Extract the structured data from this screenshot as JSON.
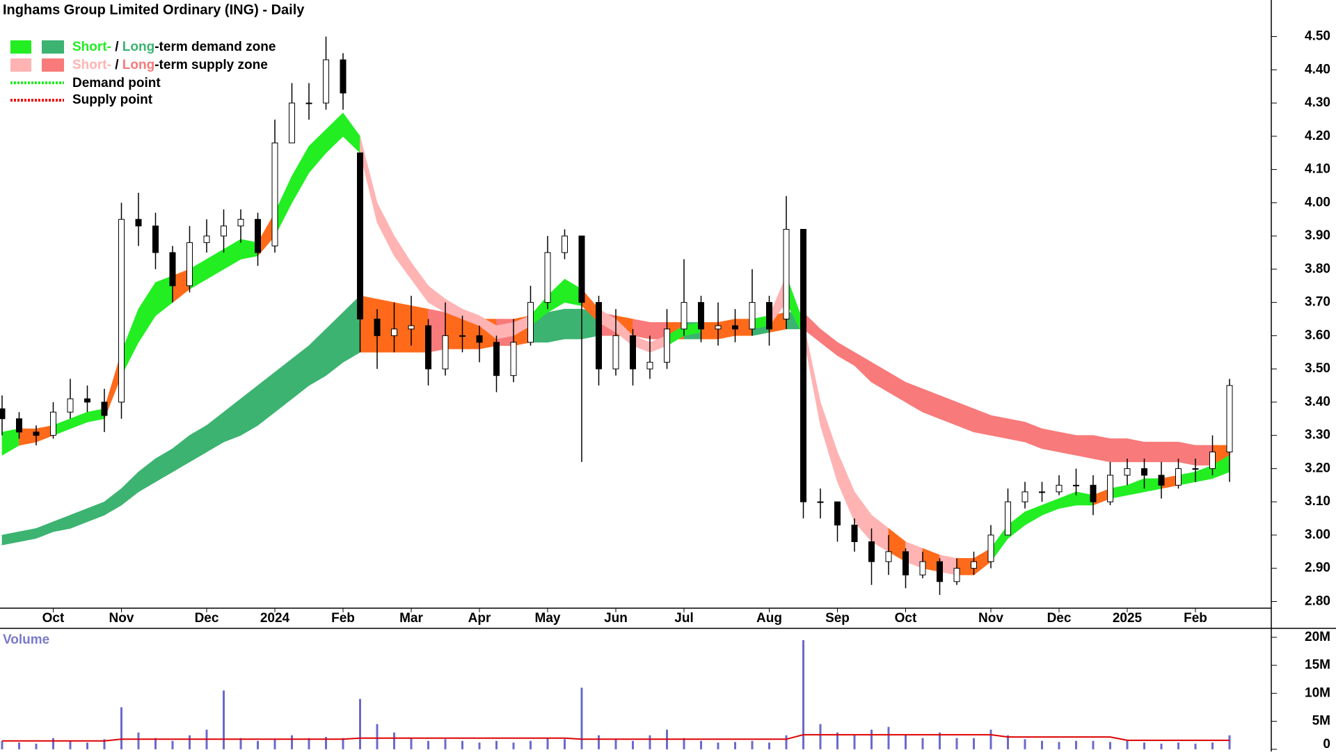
{
  "chart_data": {
    "type": "candlestick",
    "title": "Inghams Group Limited Ordinary (ING) - Daily",
    "categories": [
      null,
      null,
      null,
      "Oct",
      null,
      null,
      null,
      "Nov",
      null,
      null,
      null,
      null,
      "Dec",
      null,
      null,
      null,
      "2024",
      null,
      null,
      null,
      "Feb",
      null,
      null,
      null,
      "Mar",
      null,
      null,
      null,
      "Apr",
      null,
      null,
      null,
      "May",
      null,
      null,
      null,
      "Jun",
      null,
      null,
      null,
      "Jul",
      null,
      null,
      null,
      null,
      "Aug",
      null,
      null,
      null,
      "Sep",
      null,
      null,
      null,
      "Oct",
      null,
      null,
      null,
      null,
      "Nov",
      null,
      null,
      null,
      "Dec",
      null,
      null,
      null,
      "2025",
      null,
      null,
      null,
      "Feb",
      null,
      null
    ],
    "open": [
      3.38,
      3.35,
      3.31,
      3.3,
      3.37,
      3.41,
      3.4,
      3.4,
      3.95,
      3.93,
      3.85,
      3.75,
      3.88,
      3.9,
      3.93,
      3.95,
      3.87,
      4.18,
      4.3,
      4.3,
      4.43,
      4.15,
      3.65,
      3.6,
      3.62,
      3.63,
      3.5,
      3.6,
      3.6,
      3.58,
      3.48,
      3.58,
      3.7,
      3.85,
      3.9,
      3.7,
      3.5,
      3.6,
      3.5,
      3.52,
      3.62,
      3.7,
      3.62,
      3.63,
      3.62,
      3.7,
      3.65,
      3.92,
      3.1,
      3.1,
      3.03,
      2.98,
      2.92,
      2.95,
      2.88,
      2.92,
      2.86,
      2.9,
      2.92,
      3.0,
      3.1,
      3.13,
      3.13,
      3.15,
      3.15,
      3.1,
      3.18,
      3.2,
      3.18,
      3.15,
      3.2,
      3.2,
      3.25
    ],
    "high": [
      3.42,
      3.37,
      3.33,
      3.4,
      3.47,
      3.45,
      3.44,
      4.0,
      4.03,
      3.97,
      3.87,
      3.93,
      3.95,
      3.98,
      3.98,
      3.97,
      4.25,
      4.36,
      4.36,
      4.5,
      4.45,
      4.15,
      3.68,
      3.7,
      3.72,
      3.65,
      3.7,
      3.66,
      3.63,
      3.6,
      3.65,
      3.75,
      3.9,
      3.92,
      3.9,
      3.72,
      3.68,
      3.62,
      3.6,
      3.68,
      3.83,
      3.72,
      3.7,
      3.68,
      3.8,
      3.72,
      4.02,
      3.92,
      3.14,
      3.1,
      3.05,
      3.02,
      3.0,
      2.96,
      2.95,
      2.93,
      2.93,
      2.95,
      3.03,
      3.14,
      3.16,
      3.16,
      3.18,
      3.2,
      3.18,
      3.22,
      3.23,
      3.23,
      3.22,
      3.23,
      3.23,
      3.3,
      3.47
    ],
    "low": [
      3.3,
      3.29,
      3.27,
      3.29,
      3.35,
      3.37,
      3.31,
      3.35,
      3.87,
      3.8,
      3.7,
      3.73,
      3.85,
      3.85,
      3.88,
      3.81,
      3.85,
      4.18,
      4.25,
      4.28,
      4.28,
      3.55,
      3.5,
      3.55,
      3.57,
      3.45,
      3.48,
      3.55,
      3.52,
      3.43,
      3.46,
      3.57,
      3.68,
      3.83,
      3.22,
      3.45,
      3.48,
      3.45,
      3.47,
      3.5,
      3.6,
      3.58,
      3.57,
      3.58,
      3.6,
      3.57,
      3.62,
      3.05,
      3.05,
      2.98,
      2.95,
      2.85,
      2.88,
      2.84,
      2.87,
      2.82,
      2.85,
      2.88,
      2.9,
      3.0,
      3.08,
      3.1,
      3.12,
      3.12,
      3.06,
      3.09,
      3.15,
      3.14,
      3.11,
      3.14,
      3.16,
      3.18,
      3.16
    ],
    "close": [
      3.35,
      3.31,
      3.3,
      3.37,
      3.41,
      3.4,
      3.36,
      3.95,
      3.93,
      3.85,
      3.75,
      3.88,
      3.9,
      3.93,
      3.95,
      3.85,
      4.18,
      4.3,
      4.3,
      4.43,
      4.33,
      3.65,
      3.6,
      3.62,
      3.63,
      3.5,
      3.6,
      3.6,
      3.58,
      3.48,
      3.58,
      3.7,
      3.85,
      3.9,
      3.7,
      3.5,
      3.6,
      3.5,
      3.52,
      3.62,
      3.7,
      3.62,
      3.63,
      3.62,
      3.7,
      3.62,
      3.92,
      3.1,
      3.1,
      3.03,
      2.98,
      2.92,
      2.95,
      2.88,
      2.92,
      2.86,
      2.9,
      2.92,
      3.0,
      3.1,
      3.13,
      3.13,
      3.15,
      3.15,
      3.1,
      3.18,
      3.2,
      3.18,
      3.15,
      3.2,
      3.2,
      3.25,
      3.45
    ],
    "long_zone": {
      "upper": [
        3.0,
        3.01,
        3.02,
        3.04,
        3.06,
        3.08,
        3.1,
        3.14,
        3.19,
        3.23,
        3.26,
        3.3,
        3.33,
        3.37,
        3.41,
        3.45,
        3.49,
        3.53,
        3.57,
        3.62,
        3.67,
        3.72,
        3.71,
        3.7,
        3.69,
        3.68,
        3.67,
        3.66,
        3.65,
        3.65,
        3.65,
        3.66,
        3.67,
        3.68,
        3.68,
        3.67,
        3.66,
        3.65,
        3.64,
        3.64,
        3.64,
        3.64,
        3.64,
        3.65,
        3.65,
        3.66,
        3.67,
        3.67,
        3.62,
        3.58,
        3.55,
        3.52,
        3.49,
        3.46,
        3.44,
        3.42,
        3.4,
        3.38,
        3.36,
        3.35,
        3.34,
        3.32,
        3.31,
        3.3,
        3.3,
        3.29,
        3.29,
        3.28,
        3.28,
        3.28,
        3.27,
        3.27,
        3.27
      ],
      "lower": [
        2.97,
        2.98,
        2.99,
        3.01,
        3.02,
        3.04,
        3.06,
        3.09,
        3.13,
        3.16,
        3.19,
        3.22,
        3.25,
        3.28,
        3.3,
        3.33,
        3.37,
        3.41,
        3.45,
        3.48,
        3.52,
        3.55,
        3.55,
        3.55,
        3.55,
        3.55,
        3.56,
        3.56,
        3.56,
        3.57,
        3.57,
        3.58,
        3.58,
        3.59,
        3.59,
        3.6,
        3.6,
        3.6,
        3.59,
        3.59,
        3.59,
        3.59,
        3.59,
        3.6,
        3.6,
        3.61,
        3.62,
        3.62,
        3.58,
        3.54,
        3.51,
        3.46,
        3.43,
        3.4,
        3.37,
        3.35,
        3.33,
        3.31,
        3.3,
        3.29,
        3.28,
        3.26,
        3.25,
        3.24,
        3.23,
        3.22,
        3.22,
        3.22,
        3.22,
        3.22,
        3.21,
        3.21,
        3.21
      ]
    },
    "short_zone": {
      "upper": [
        3.31,
        3.32,
        3.32,
        3.33,
        3.35,
        3.37,
        3.38,
        3.55,
        3.68,
        3.76,
        3.78,
        3.8,
        3.83,
        3.86,
        3.89,
        3.88,
        3.97,
        4.08,
        4.17,
        4.22,
        4.27,
        4.2,
        4.0,
        3.9,
        3.82,
        3.75,
        3.71,
        3.68,
        3.66,
        3.63,
        3.64,
        3.66,
        3.72,
        3.77,
        3.74,
        3.68,
        3.65,
        3.6,
        3.58,
        3.6,
        3.63,
        3.64,
        3.64,
        3.64,
        3.65,
        3.66,
        3.78,
        3.64,
        3.4,
        3.25,
        3.13,
        3.06,
        3.02,
        2.98,
        2.96,
        2.94,
        2.93,
        2.93,
        2.96,
        3.03,
        3.07,
        3.09,
        3.11,
        3.13,
        3.12,
        3.14,
        3.15,
        3.17,
        3.17,
        3.18,
        3.19,
        3.21,
        3.24
      ],
      "lower": [
        3.24,
        3.27,
        3.28,
        3.3,
        3.32,
        3.34,
        3.35,
        3.48,
        3.58,
        3.66,
        3.7,
        3.74,
        3.77,
        3.8,
        3.83,
        3.84,
        3.9,
        4.0,
        4.09,
        4.15,
        4.2,
        4.15,
        3.94,
        3.84,
        3.77,
        3.7,
        3.67,
        3.65,
        3.63,
        3.59,
        3.6,
        3.63,
        3.67,
        3.7,
        3.69,
        3.64,
        3.61,
        3.57,
        3.55,
        3.57,
        3.6,
        3.61,
        3.61,
        3.61,
        3.62,
        3.63,
        3.7,
        3.6,
        3.33,
        3.16,
        3.04,
        2.98,
        2.95,
        2.92,
        2.9,
        2.89,
        2.88,
        2.88,
        2.92,
        2.99,
        3.03,
        3.06,
        3.08,
        3.09,
        3.09,
        3.11,
        3.12,
        3.13,
        3.14,
        3.15,
        3.16,
        3.17,
        3.19
      ]
    },
    "ylim": [
      2.78,
      4.61
    ],
    "yticks": [
      {
        "value": 2.8,
        "label": "2.80"
      },
      {
        "value": 2.9,
        "label": "2.90"
      },
      {
        "value": 3.0,
        "label": "3.00"
      },
      {
        "value": 3.1,
        "label": "3.10"
      },
      {
        "value": 3.2,
        "label": "3.20"
      },
      {
        "value": 3.3,
        "label": "3.30"
      },
      {
        "value": 3.4,
        "label": "3.40"
      },
      {
        "value": 3.5,
        "label": "3.50"
      },
      {
        "value": 3.6,
        "label": "3.60"
      },
      {
        "value": 3.7,
        "label": "3.70"
      },
      {
        "value": 3.8,
        "label": "3.80"
      },
      {
        "value": 3.9,
        "label": "3.90"
      },
      {
        "value": 4.0,
        "label": "4.00"
      },
      {
        "value": 4.1,
        "label": "4.10"
      },
      {
        "value": 4.2,
        "label": "4.20"
      },
      {
        "value": 4.3,
        "label": "4.30"
      },
      {
        "value": 4.4,
        "label": "4.40"
      },
      {
        "value": 4.5,
        "label": "4.50"
      }
    ],
    "volume_label": "Volume",
    "volume": [
      1500000,
      1200000,
      1000000,
      2000000,
      1500000,
      1200000,
      1800000,
      7500000,
      3000000,
      2000000,
      1500000,
      2500000,
      3500000,
      10500000,
      2000000,
      1500000,
      1800000,
      2500000,
      2000000,
      2200000,
      2000000,
      9000000,
      4500000,
      3000000,
      2000000,
      1500000,
      1800000,
      1500000,
      1200000,
      1500000,
      1200000,
      1500000,
      2000000,
      1800000,
      11000000,
      2500000,
      1800000,
      1500000,
      2500000,
      3500000,
      2000000,
      1500000,
      1200000,
      1300000,
      1500000,
      1200000,
      2500000,
      19500000,
      4500000,
      3000000,
      2500000,
      3500000,
      4000000,
      2500000,
      2000000,
      3000000,
      2000000,
      2000000,
      3500000,
      2500000,
      1800000,
      1500000,
      1300000,
      1500000,
      1500000,
      1300000,
      1500000,
      1200000,
      1000000,
      1200000,
      1000000,
      1200000,
      2500000
    ],
    "volume_ma": [
      1500000,
      1500000,
      1500000,
      1500000,
      1500000,
      1500000,
      1500000,
      1800000,
      1800000,
      1800000,
      1800000,
      1800000,
      1800000,
      1800000,
      1800000,
      1800000,
      1800000,
      1800000,
      1800000,
      1800000,
      1800000,
      2000000,
      2000000,
      2000000,
      2000000,
      2000000,
      2000000,
      2000000,
      2000000,
      2000000,
      2000000,
      2000000,
      2000000,
      2000000,
      1800000,
      1800000,
      1800000,
      1800000,
      1800000,
      1800000,
      1800000,
      1800000,
      1800000,
      1800000,
      1800000,
      1800000,
      1800000,
      2600000,
      2600000,
      2600000,
      2600000,
      2600000,
      2600000,
      2600000,
      2600000,
      2600000,
      2600000,
      2600000,
      2600000,
      2200000,
      2200000,
      2200000,
      2200000,
      2200000,
      2200000,
      2200000,
      1600000,
      1600000,
      1600000,
      1600000,
      1600000,
      1600000,
      1600000
    ],
    "volume_ylim": [
      -400000,
      21600000
    ],
    "volume_yticks": [
      0,
      {
        "value": 5000000,
        "label": "5M"
      },
      {
        "value": 10000000,
        "label": "10M"
      },
      {
        "value": 15000000,
        "label": "15M"
      },
      {
        "value": 20000000,
        "label": "20M"
      }
    ],
    "colors": {
      "short_demand": "#22ee22",
      "long_demand": "#3cb371",
      "short_supply": "#ffb3b3",
      "long_supply": "#f87a7a",
      "overlap": "#ff6a1a",
      "demand_point": "#22ee22",
      "supply_point": "#ee0000",
      "volume": "#6a6acc",
      "volume_ma": "#dd0000",
      "up": "#ffffff",
      "down": "#000000",
      "volume_text": "#7a7acc"
    },
    "legend": [
      {
        "short": "Short-",
        "sep": " / ",
        "long": "Long",
        "rest": "-term demand zone"
      },
      {
        "short": "Short-",
        "sep": " / ",
        "long": "Long",
        "rest": "-term supply zone"
      },
      {
        "label": "Demand point"
      },
      {
        "label": "Supply point"
      }
    ]
  }
}
